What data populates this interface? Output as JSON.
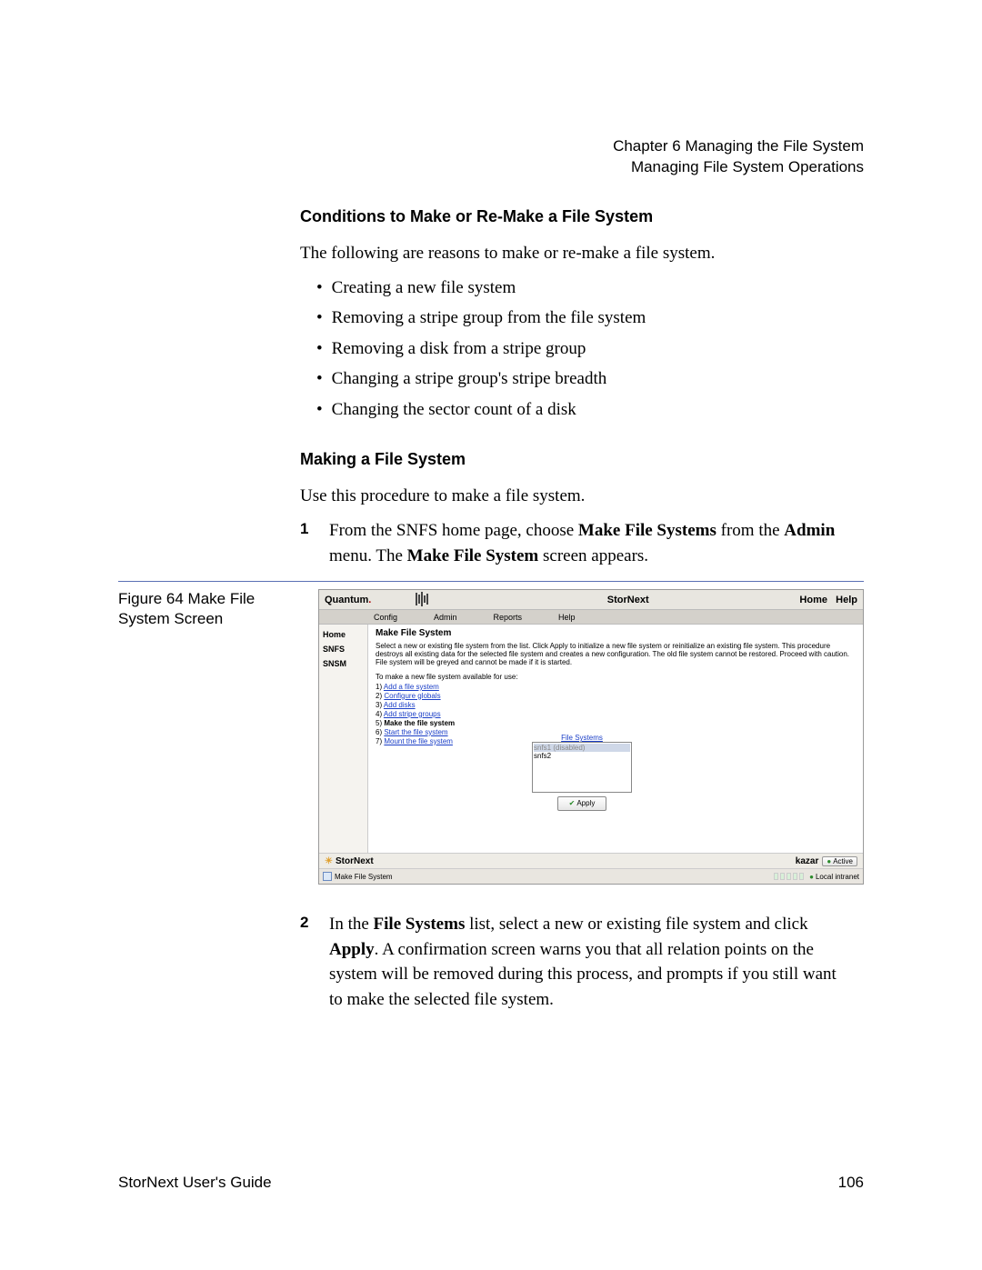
{
  "header": {
    "chapter": "Chapter 6  Managing the File System",
    "section": "Managing File System Operations"
  },
  "section1": {
    "heading": "Conditions to Make or Re-Make a File System",
    "intro": "The following are reasons to make or re-make a file system.",
    "bullets": [
      "Creating a new file system",
      "Removing a stripe group from the file system",
      "Removing a disk from a stripe group",
      "Changing a stripe group's stripe breadth",
      "Changing the sector count of a disk"
    ]
  },
  "section2": {
    "heading": "Making a File System",
    "intro": "Use this procedure to make a file system.",
    "step1_pre": "From the SNFS home page, choose ",
    "step1_b1": "Make File Systems",
    "step1_mid": " from the ",
    "step1_b2": "Admin",
    "step1_mid2": " menu. The ",
    "step1_b3": "Make File System",
    "step1_post": " screen appears."
  },
  "figure": {
    "caption": "Figure 64  Make File System Screen"
  },
  "screenshot": {
    "brand": "Quantum",
    "title": "StorNext",
    "home": "Home",
    "help": "Help",
    "menus": [
      "Config",
      "Admin",
      "Reports",
      "Help"
    ],
    "sidebar": [
      "Home",
      "SNFS",
      "SNSM"
    ],
    "panel_title": "Make File System",
    "desc": "Select a new or existing file system from the list. Click Apply to initialize a new file system or reinitialize an existing file system. This procedure destroys all existing data for the selected file system and creates a new configuration. The old file system cannot be restored. Proceed with caution. File system will be greyed and cannot be made if it is started.",
    "steps_label": "To make a new file system available for use:",
    "steps": [
      {
        "n": "1)",
        "t": "Add a file system",
        "link": true
      },
      {
        "n": "2)",
        "t": "Configure globals",
        "link": true
      },
      {
        "n": "3)",
        "t": "Add disks",
        "link": true
      },
      {
        "n": "4)",
        "t": "Add stripe groups",
        "link": true
      },
      {
        "n": "5)",
        "t": "Make the file system",
        "link": false,
        "bold": true
      },
      {
        "n": "6)",
        "t": "Start the file system",
        "link": true
      },
      {
        "n": "7)",
        "t": "Mount the file system",
        "link": true
      }
    ],
    "fs_label": "File Systems",
    "fs_items": [
      "snfs1   (disabled)",
      "snfs2"
    ],
    "apply": "Apply",
    "footer_brand": "StorNext",
    "host": "kazar",
    "active": "Active",
    "status_left": "Make File System",
    "status_right": "Local intranet"
  },
  "step2": {
    "pre": "In the ",
    "b1": "File Systems",
    "mid": " list, select a new or existing file system and click ",
    "b2": "Apply",
    "post": ". A confirmation screen warns you that all relation points on the system will be removed during this process, and prompts if you still want to make the selected file system."
  },
  "footer": {
    "left": "StorNext User's Guide",
    "page": "106"
  }
}
